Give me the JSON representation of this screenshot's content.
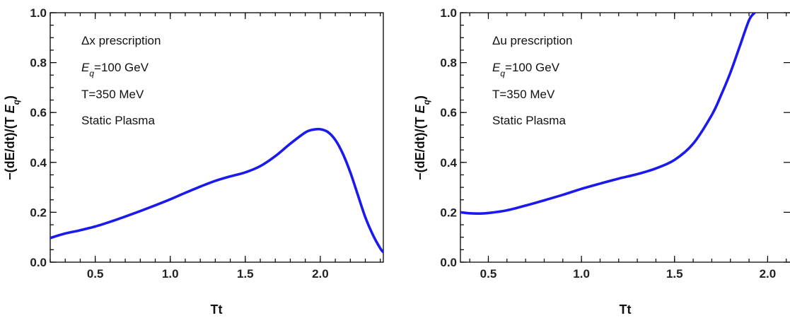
{
  "colors": {
    "curve": "#1a1aee",
    "frame": "#000000"
  },
  "chart_data": [
    {
      "type": "line",
      "title": "",
      "xlabel": "Tt",
      "ylabel": "−(dE/dt)/(T E_q)",
      "xlim": [
        0.2,
        2.42
      ],
      "ylim": [
        0.0,
        1.0
      ],
      "grid": false,
      "xticks": [
        "0.5",
        "1.0",
        "1.5",
        "2.0"
      ],
      "yticks": [
        "0.0",
        "0.2",
        "0.4",
        "0.6",
        "0.8",
        "1.0"
      ],
      "annotations": [
        "Δx prescription",
        "E_q=100 GeV",
        "T=350 MeV",
        "Static Plasma"
      ],
      "series": [
        {
          "x": [
            0.2,
            0.3,
            0.4,
            0.5,
            0.6,
            0.7,
            0.8,
            0.9,
            1.0,
            1.1,
            1.2,
            1.3,
            1.4,
            1.5,
            1.6,
            1.7,
            1.8,
            1.9,
            1.95,
            2.0,
            2.05,
            2.1,
            2.15,
            2.2,
            2.25,
            2.3,
            2.35,
            2.4,
            2.42
          ],
          "y": [
            0.097,
            0.115,
            0.128,
            0.143,
            0.162,
            0.183,
            0.205,
            0.228,
            0.252,
            0.278,
            0.303,
            0.326,
            0.344,
            0.36,
            0.385,
            0.425,
            0.475,
            0.52,
            0.531,
            0.533,
            0.522,
            0.49,
            0.435,
            0.36,
            0.27,
            0.18,
            0.11,
            0.055,
            0.04
          ]
        }
      ]
    },
    {
      "type": "line",
      "title": "",
      "xlabel": "Tt",
      "ylabel": "−(dE/dt)/(T E_q)",
      "xlim": [
        0.35,
        2.12
      ],
      "ylim": [
        0.0,
        1.0
      ],
      "grid": false,
      "xticks": [
        "0.5",
        "1.0",
        "1.5",
        "2.0"
      ],
      "yticks": [
        "0.0",
        "0.2",
        "0.4",
        "0.6",
        "0.8",
        "1.0"
      ],
      "annotations": [
        "Δu prescription",
        "E_q=100 GeV",
        "T=350 MeV",
        "Static Plasma"
      ],
      "series": [
        {
          "x": [
            0.35,
            0.4,
            0.45,
            0.5,
            0.6,
            0.7,
            0.8,
            0.9,
            1.0,
            1.1,
            1.2,
            1.3,
            1.4,
            1.5,
            1.6,
            1.7,
            1.75,
            1.8,
            1.85,
            1.9,
            1.93
          ],
          "y": [
            0.2,
            0.196,
            0.195,
            0.197,
            0.208,
            0.227,
            0.248,
            0.27,
            0.294,
            0.315,
            0.335,
            0.353,
            0.376,
            0.41,
            0.475,
            0.59,
            0.67,
            0.76,
            0.865,
            0.97,
            1.0
          ]
        }
      ]
    }
  ]
}
